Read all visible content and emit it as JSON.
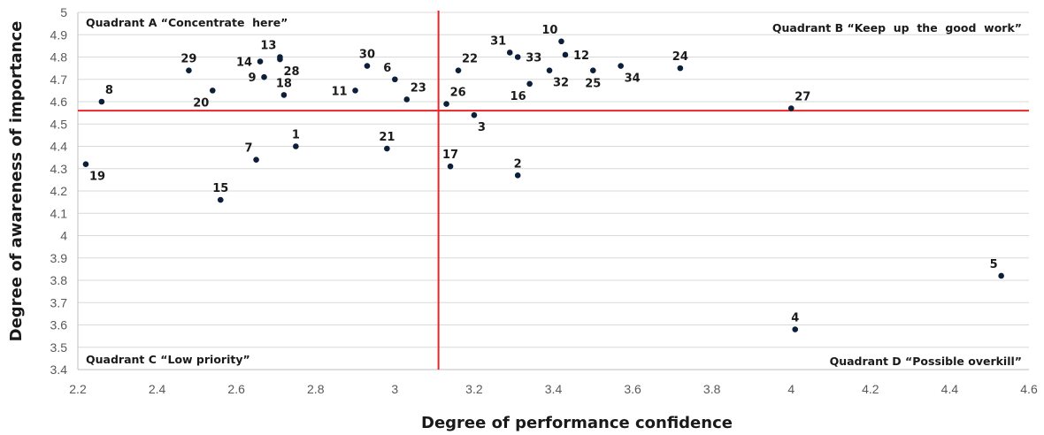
{
  "chart_data": {
    "type": "scatter",
    "xlabel": "Degree of performance confidence",
    "ylabel": "Degree of awareness of importance",
    "xlim": [
      2.2,
      4.6
    ],
    "ylim": [
      3.4,
      5.0
    ],
    "x_ticks": [
      "2.2",
      "2.4",
      "2.6",
      "2.8",
      "3",
      "3.2",
      "3.4",
      "3.6",
      "3.8",
      "4",
      "4.2",
      "4.4",
      "4.6"
    ],
    "y_ticks": [
      "3.4",
      "3.5",
      "3.6",
      "3.7",
      "3.8",
      "3.9",
      "4",
      "4.1",
      "4.2",
      "4.3",
      "4.4",
      "4.5",
      "4.6",
      "4.7",
      "4.8",
      "4.9",
      "5"
    ],
    "grid": "horizontal",
    "quadrant_divider": {
      "x": 3.11,
      "y": 4.56,
      "color": "#e8262a"
    },
    "point_color": "#0b1f3a",
    "quadrant_labels": [
      {
        "position": "top-left",
        "text": "Quadrant A “Concentrate  here”"
      },
      {
        "position": "top-right",
        "text": "Quadrant B “Keep  up  the  good  work”"
      },
      {
        "position": "bottom-left",
        "text": "Quadrant C “Low priority”"
      },
      {
        "position": "bottom-right",
        "text": "Quadrant D “Possible overkill”"
      }
    ],
    "points": [
      {
        "label": "1",
        "x": 2.75,
        "y": 4.4,
        "anchor": "above"
      },
      {
        "label": "2",
        "x": 3.31,
        "y": 4.27,
        "anchor": "above"
      },
      {
        "label": "3",
        "x": 3.2,
        "y": 4.54,
        "anchor": "below-right"
      },
      {
        "label": "4",
        "x": 4.01,
        "y": 3.58,
        "anchor": "above"
      },
      {
        "label": "5",
        "x": 4.53,
        "y": 3.82,
        "anchor": "above-left"
      },
      {
        "label": "6",
        "x": 3.0,
        "y": 4.7,
        "anchor": "above-left"
      },
      {
        "label": "7",
        "x": 2.65,
        "y": 4.34,
        "anchor": "above-left"
      },
      {
        "label": "8",
        "x": 2.26,
        "y": 4.6,
        "anchor": "above-right"
      },
      {
        "label": "9",
        "x": 2.67,
        "y": 4.71,
        "anchor": "left"
      },
      {
        "label": "10",
        "x": 3.42,
        "y": 4.87,
        "anchor": "above-left"
      },
      {
        "label": "11",
        "x": 2.9,
        "y": 4.65,
        "anchor": "left"
      },
      {
        "label": "12",
        "x": 3.43,
        "y": 4.81,
        "anchor": "right"
      },
      {
        "label": "13",
        "x": 2.71,
        "y": 4.8,
        "anchor": "above-left"
      },
      {
        "label": "14",
        "x": 2.66,
        "y": 4.78,
        "anchor": "left"
      },
      {
        "label": "15",
        "x": 2.56,
        "y": 4.16,
        "anchor": "above"
      },
      {
        "label": "16",
        "x": 3.34,
        "y": 4.68,
        "anchor": "below-left"
      },
      {
        "label": "17",
        "x": 3.14,
        "y": 4.31,
        "anchor": "above"
      },
      {
        "label": "18",
        "x": 2.72,
        "y": 4.63,
        "anchor": "above"
      },
      {
        "label": "19",
        "x": 2.22,
        "y": 4.32,
        "anchor": "below-right"
      },
      {
        "label": "20",
        "x": 2.54,
        "y": 4.65,
        "anchor": "below-left"
      },
      {
        "label": "21",
        "x": 2.98,
        "y": 4.39,
        "anchor": "above"
      },
      {
        "label": "22",
        "x": 3.16,
        "y": 4.74,
        "anchor": "above-right"
      },
      {
        "label": "23",
        "x": 3.03,
        "y": 4.61,
        "anchor": "above-right"
      },
      {
        "label": "24",
        "x": 3.72,
        "y": 4.75,
        "anchor": "above"
      },
      {
        "label": "25",
        "x": 3.5,
        "y": 4.74,
        "anchor": "below"
      },
      {
        "label": "26",
        "x": 3.13,
        "y": 4.59,
        "anchor": "above-right"
      },
      {
        "label": "27",
        "x": 4.0,
        "y": 4.57,
        "anchor": "above-right"
      },
      {
        "label": "28",
        "x": 2.71,
        "y": 4.79,
        "anchor": "below-right"
      },
      {
        "label": "29",
        "x": 2.48,
        "y": 4.74,
        "anchor": "above"
      },
      {
        "label": "30",
        "x": 2.93,
        "y": 4.76,
        "anchor": "above"
      },
      {
        "label": "31",
        "x": 3.29,
        "y": 4.82,
        "anchor": "above-left"
      },
      {
        "label": "32",
        "x": 3.39,
        "y": 4.74,
        "anchor": "below-right"
      },
      {
        "label": "33",
        "x": 3.31,
        "y": 4.8,
        "anchor": "right"
      },
      {
        "label": "34",
        "x": 3.57,
        "y": 4.76,
        "anchor": "below-right"
      }
    ]
  }
}
